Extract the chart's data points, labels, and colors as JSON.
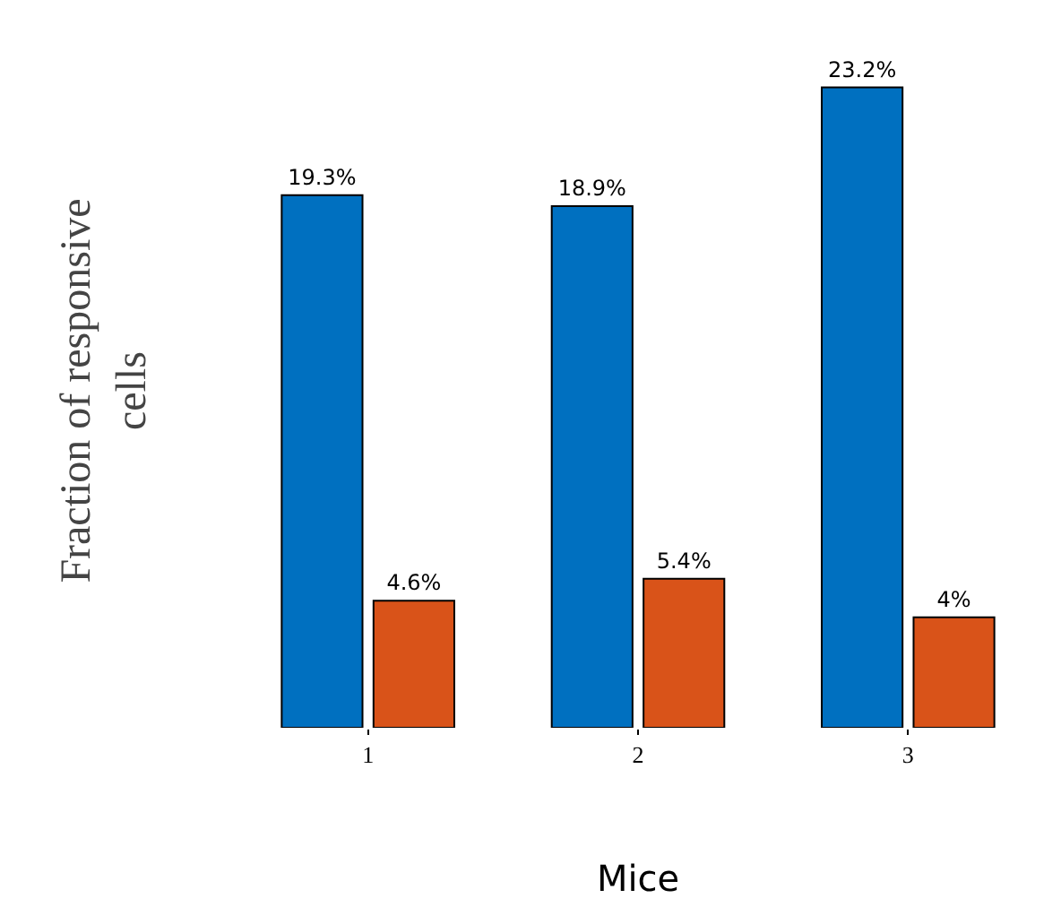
{
  "chart_data": {
    "type": "bar",
    "xlabel": "Mice",
    "ylabel": "Fraction of responsive cells",
    "categories": [
      "1",
      "2",
      "3"
    ],
    "series": [
      {
        "color": "#0070c0",
        "values": [
          19.3,
          18.9,
          23.2
        ],
        "value_labels": [
          "19.3%",
          "18.9%",
          "23.2%"
        ]
      },
      {
        "color": "#d95319",
        "values": [
          4.6,
          5.4,
          4
        ],
        "value_labels": [
          "4.6%",
          "5.4%",
          "4%"
        ]
      }
    ],
    "grid": false,
    "legend": false
  }
}
